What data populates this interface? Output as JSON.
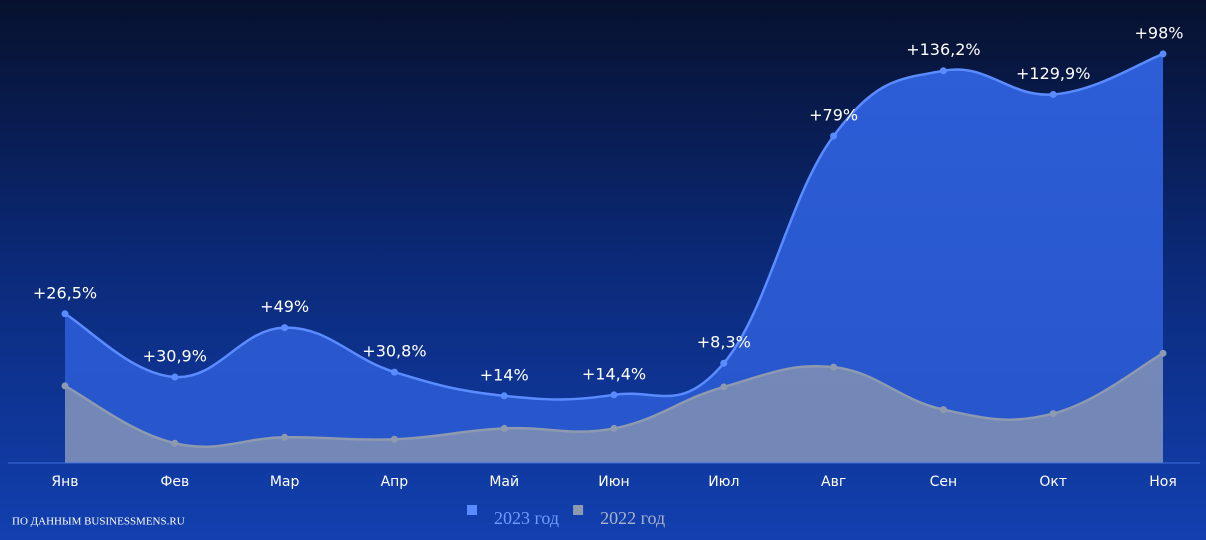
{
  "chart_data": {
    "type": "area",
    "categories": [
      "Янв",
      "Фев",
      "Мар",
      "Апр",
      "Май",
      "Июн",
      "Июл",
      "Авг",
      "Сен",
      "Окт",
      "Ноя"
    ],
    "series": [
      {
        "name": "2023 год",
        "color": "#5b8cff",
        "values": [
          151,
          87,
          137,
          92,
          68,
          69,
          101,
          331,
          397,
          373,
          414
        ]
      },
      {
        "name": "2022 год",
        "color": "#8d9ab0",
        "values": [
          78,
          20,
          26,
          24,
          35,
          35,
          77,
          97,
          54,
          50,
          111
        ]
      }
    ],
    "annotations": [
      "+26,5%",
      "+30,9%",
      "+49%",
      "+30,8%",
      "+14%",
      "+14,4%",
      "+8,3%",
      "+79%",
      "+136,2%",
      "+129,9%",
      "+98%"
    ],
    "ylim": [
      0,
      420
    ],
    "source": "ПО ДАННЫМ BUSINESSMENS.RU"
  }
}
